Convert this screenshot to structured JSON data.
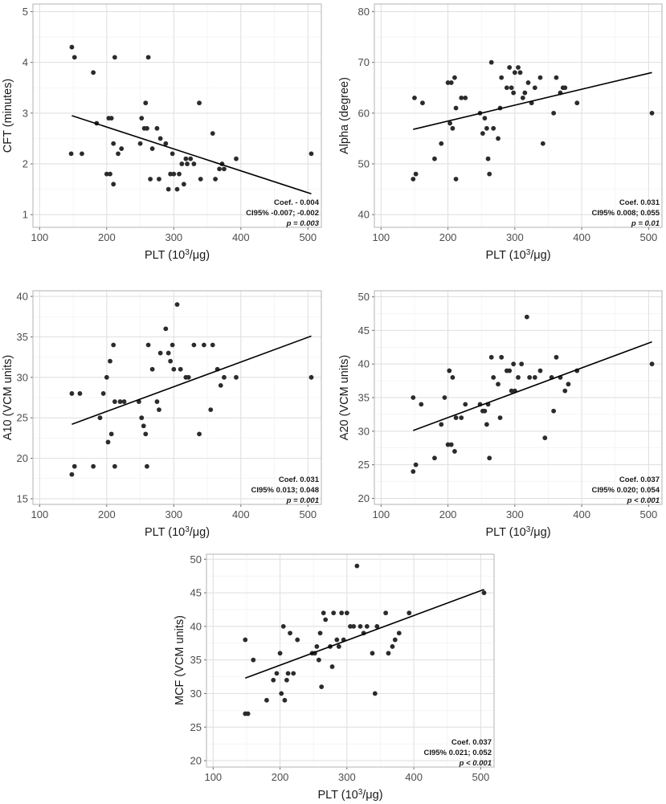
{
  "colors": {
    "panel_border": "#b3b3b3",
    "grid_major": "#dedede",
    "grid_minor": "#efefef",
    "point": "#2b2b2b",
    "line": "#000000"
  },
  "chart_data": [
    {
      "type": "scatter",
      "id": "cft",
      "xlabel_main": "PLT (10",
      "xlabel_sup": "3",
      "xlabel_tail": "/μg)",
      "ylabel": "CFT (minutes)",
      "xlim": [
        90,
        520
      ],
      "ylim": [
        0.75,
        5.15
      ],
      "xticks": [
        100,
        200,
        300,
        400,
        500
      ],
      "yticks": [
        1,
        2,
        3,
        4,
        5
      ],
      "ytick_labels": [
        "1",
        "2",
        "3",
        "4",
        "5"
      ],
      "xtick_labels": [
        "100",
        "200",
        "300",
        "400",
        "500"
      ],
      "fit": {
        "x": [
          148,
          505
        ],
        "y": [
          2.95,
          1.41
        ]
      },
      "stats": {
        "coef": "Coef. - 0.004",
        "ci": "CI95% -0.007; -0.002",
        "p": "p = 0.003"
      },
      "points": [
        [
          148,
          4.3
        ],
        [
          152,
          4.1
        ],
        [
          147,
          2.2
        ],
        [
          163,
          2.2
        ],
        [
          180,
          3.8
        ],
        [
          185,
          2.8
        ],
        [
          200,
          1.8
        ],
        [
          203,
          2.9
        ],
        [
          205,
          1.8
        ],
        [
          207,
          2.9
        ],
        [
          210,
          2.4
        ],
        [
          210,
          1.6
        ],
        [
          212,
          4.1
        ],
        [
          217,
          2.2
        ],
        [
          222,
          2.3
        ],
        [
          250,
          2.4
        ],
        [
          252,
          2.9
        ],
        [
          256,
          2.7
        ],
        [
          258,
          3.2
        ],
        [
          260,
          2.7
        ],
        [
          262,
          4.1
        ],
        [
          265,
          1.7
        ],
        [
          268,
          2.3
        ],
        [
          275,
          2.7
        ],
        [
          278,
          1.7
        ],
        [
          280,
          2.5
        ],
        [
          288,
          2.4
        ],
        [
          292,
          1.5
        ],
        [
          295,
          1.8
        ],
        [
          298,
          2.2
        ],
        [
          300,
          1.8
        ],
        [
          305,
          1.5
        ],
        [
          308,
          1.8
        ],
        [
          312,
          2.0
        ],
        [
          315,
          1.6
        ],
        [
          318,
          2.1
        ],
        [
          320,
          2.0
        ],
        [
          325,
          2.1
        ],
        [
          330,
          2.0
        ],
        [
          338,
          3.2
        ],
        [
          340,
          1.7
        ],
        [
          358,
          2.6
        ],
        [
          362,
          1.7
        ],
        [
          368,
          1.9
        ],
        [
          372,
          2.0
        ],
        [
          375,
          1.9
        ],
        [
          393,
          2.1
        ],
        [
          505,
          2.2
        ]
      ]
    },
    {
      "type": "scatter",
      "id": "alpha",
      "xlabel_main": "PLT (10",
      "xlabel_sup": "3",
      "xlabel_tail": "/μg)",
      "ylabel": "Alpha (degree)",
      "xlim": [
        90,
        520
      ],
      "ylim": [
        37.5,
        81.5
      ],
      "xticks": [
        100,
        200,
        300,
        400,
        500
      ],
      "yticks": [
        40,
        50,
        60,
        70,
        80
      ],
      "ytick_labels": [
        "40",
        "50",
        "60",
        "70",
        "80"
      ],
      "xtick_labels": [
        "100",
        "200",
        "300",
        "400",
        "500"
      ],
      "fit": {
        "x": [
          148,
          505
        ],
        "y": [
          56.8,
          68.0
        ]
      },
      "stats": {
        "coef": "Coef. 0.031",
        "ci": "CI95% 0.008; 0.055",
        "p": "p = 0.01"
      },
      "points": [
        [
          148,
          47
        ],
        [
          150,
          63
        ],
        [
          152,
          48
        ],
        [
          162,
          62
        ],
        [
          180,
          51
        ],
        [
          190,
          54
        ],
        [
          200,
          66
        ],
        [
          203,
          58
        ],
        [
          205,
          66
        ],
        [
          207,
          57
        ],
        [
          210,
          67
        ],
        [
          212,
          61
        ],
        [
          212,
          47
        ],
        [
          220,
          63
        ],
        [
          226,
          63
        ],
        [
          248,
          60
        ],
        [
          252,
          56
        ],
        [
          255,
          59
        ],
        [
          258,
          57
        ],
        [
          260,
          51
        ],
        [
          262,
          48
        ],
        [
          265,
          70
        ],
        [
          268,
          57
        ],
        [
          275,
          55
        ],
        [
          278,
          61
        ],
        [
          280,
          67
        ],
        [
          288,
          65
        ],
        [
          292,
          69
        ],
        [
          295,
          65
        ],
        [
          298,
          64
        ],
        [
          300,
          68
        ],
        [
          305,
          69
        ],
        [
          308,
          68
        ],
        [
          312,
          63
        ],
        [
          315,
          64
        ],
        [
          320,
          66
        ],
        [
          325,
          62
        ],
        [
          330,
          65
        ],
        [
          338,
          67
        ],
        [
          342,
          54
        ],
        [
          358,
          60
        ],
        [
          362,
          67
        ],
        [
          368,
          64
        ],
        [
          372,
          65
        ],
        [
          375,
          65
        ],
        [
          393,
          62
        ],
        [
          505,
          60
        ]
      ]
    },
    {
      "type": "scatter",
      "id": "a10",
      "xlabel_main": "PLT (10",
      "xlabel_sup": "3",
      "xlabel_tail": "/μg)",
      "ylabel": "A10 (VCM units)",
      "xlim": [
        90,
        520
      ],
      "ylim": [
        14.3,
        40.7
      ],
      "xticks": [
        100,
        200,
        300,
        400,
        500
      ],
      "yticks": [
        15,
        20,
        25,
        30,
        35,
        40
      ],
      "ytick_labels": [
        "15",
        "20",
        "25",
        "30",
        "35",
        "40"
      ],
      "xtick_labels": [
        "100",
        "200",
        "300",
        "400",
        "500"
      ],
      "fit": {
        "x": [
          148,
          505
        ],
        "y": [
          24.2,
          35.1
        ]
      },
      "stats": {
        "coef": "Coef. 0.031",
        "ci": "CI95% 0.013; 0.048",
        "p": "p = 0.001"
      },
      "points": [
        [
          148,
          28
        ],
        [
          148,
          18
        ],
        [
          152,
          19
        ],
        [
          160,
          28
        ],
        [
          180,
          19
        ],
        [
          190,
          25
        ],
        [
          195,
          28
        ],
        [
          200,
          30
        ],
        [
          202,
          22
        ],
        [
          205,
          32
        ],
        [
          207,
          23
        ],
        [
          210,
          34
        ],
        [
          212,
          27
        ],
        [
          212,
          19
        ],
        [
          220,
          27
        ],
        [
          226,
          27
        ],
        [
          248,
          27
        ],
        [
          252,
          25
        ],
        [
          255,
          24
        ],
        [
          258,
          23
        ],
        [
          260,
          19
        ],
        [
          262,
          34
        ],
        [
          268,
          31
        ],
        [
          275,
          27
        ],
        [
          278,
          26
        ],
        [
          280,
          33
        ],
        [
          288,
          36
        ],
        [
          292,
          33
        ],
        [
          295,
          32
        ],
        [
          298,
          34
        ],
        [
          300,
          31
        ],
        [
          305,
          39
        ],
        [
          310,
          31
        ],
        [
          318,
          30
        ],
        [
          322,
          30
        ],
        [
          330,
          34
        ],
        [
          338,
          23
        ],
        [
          345,
          34
        ],
        [
          355,
          26
        ],
        [
          358,
          34
        ],
        [
          365,
          31
        ],
        [
          370,
          29
        ],
        [
          375,
          30
        ],
        [
          393,
          30
        ],
        [
          505,
          30
        ]
      ]
    },
    {
      "type": "scatter",
      "id": "a20",
      "xlabel_main": "PLT (10",
      "xlabel_sup": "3",
      "xlabel_tail": "/μg)",
      "ylabel": "A20 (VCM units)",
      "xlim": [
        90,
        520
      ],
      "ylim": [
        19.1,
        50.9
      ],
      "xticks": [
        100,
        200,
        300,
        400,
        500
      ],
      "yticks": [
        20,
        25,
        30,
        35,
        40,
        45,
        50
      ],
      "ytick_labels": [
        "20",
        "25",
        "30",
        "35",
        "40",
        "45",
        "50"
      ],
      "xtick_labels": [
        "100",
        "200",
        "300",
        "400",
        "500"
      ],
      "fit": {
        "x": [
          148,
          505
        ],
        "y": [
          30.1,
          43.3
        ]
      },
      "stats": {
        "coef": "Coef. 0.037",
        "ci": "CI95% 0.020; 0.054",
        "p": "p < 0.001"
      },
      "points": [
        [
          148,
          35
        ],
        [
          148,
          24
        ],
        [
          152,
          25
        ],
        [
          160,
          34
        ],
        [
          180,
          26
        ],
        [
          190,
          31
        ],
        [
          195,
          35
        ],
        [
          200,
          28
        ],
        [
          202,
          39
        ],
        [
          205,
          28
        ],
        [
          207,
          38
        ],
        [
          210,
          27
        ],
        [
          212,
          32
        ],
        [
          220,
          32
        ],
        [
          226,
          34
        ],
        [
          248,
          34
        ],
        [
          252,
          33
        ],
        [
          255,
          33
        ],
        [
          258,
          31
        ],
        [
          260,
          34
        ],
        [
          262,
          26
        ],
        [
          265,
          41
        ],
        [
          268,
          38
        ],
        [
          275,
          37
        ],
        [
          278,
          32
        ],
        [
          280,
          41
        ],
        [
          288,
          39
        ],
        [
          292,
          39
        ],
        [
          295,
          36
        ],
        [
          298,
          40
        ],
        [
          300,
          36
        ],
        [
          305,
          38
        ],
        [
          310,
          40
        ],
        [
          318,
          47
        ],
        [
          322,
          38
        ],
        [
          330,
          38
        ],
        [
          338,
          39
        ],
        [
          345,
          29
        ],
        [
          355,
          38
        ],
        [
          358,
          33
        ],
        [
          362,
          41
        ],
        [
          368,
          38
        ],
        [
          375,
          36
        ],
        [
          380,
          37
        ],
        [
          393,
          39
        ],
        [
          505,
          40
        ]
      ]
    },
    {
      "type": "scatter",
      "id": "mcf",
      "xlabel_main": "PLT (10",
      "xlabel_sup": "3",
      "xlabel_tail": "/μg)",
      "ylabel": "MCF (VCM units)",
      "xlim": [
        90,
        520
      ],
      "ylim": [
        19.05,
        50.75
      ],
      "xticks": [
        100,
        200,
        300,
        400,
        500
      ],
      "yticks": [
        20,
        25,
        30,
        35,
        40,
        45,
        50
      ],
      "ytick_labels": [
        "20",
        "25",
        "30",
        "35",
        "40",
        "45",
        "50"
      ],
      "xtick_labels": [
        "100",
        "200",
        "300",
        "400",
        "500"
      ],
      "fit": {
        "x": [
          148,
          505
        ],
        "y": [
          32.3,
          45.5
        ]
      },
      "stats": {
        "coef": "Coef. 0.037",
        "ci": "CI95% 0.021; 0.052",
        "p": "p < 0.001"
      },
      "points": [
        [
          148,
          38
        ],
        [
          148,
          27
        ],
        [
          152,
          27
        ],
        [
          160,
          35
        ],
        [
          180,
          29
        ],
        [
          190,
          32
        ],
        [
          195,
          33
        ],
        [
          200,
          36
        ],
        [
          202,
          30
        ],
        [
          205,
          40
        ],
        [
          207,
          29
        ],
        [
          210,
          32
        ],
        [
          212,
          33
        ],
        [
          215,
          39
        ],
        [
          220,
          33
        ],
        [
          226,
          38
        ],
        [
          248,
          36
        ],
        [
          252,
          36
        ],
        [
          255,
          37
        ],
        [
          258,
          35
        ],
        [
          260,
          39
        ],
        [
          262,
          31
        ],
        [
          265,
          42
        ],
        [
          268,
          41
        ],
        [
          275,
          37
        ],
        [
          278,
          34
        ],
        [
          280,
          42
        ],
        [
          285,
          38
        ],
        [
          288,
          37
        ],
        [
          292,
          42
        ],
        [
          295,
          38
        ],
        [
          300,
          42
        ],
        [
          305,
          40
        ],
        [
          310,
          40
        ],
        [
          315,
          49
        ],
        [
          320,
          40
        ],
        [
          325,
          39
        ],
        [
          330,
          40
        ],
        [
          338,
          36
        ],
        [
          342,
          30
        ],
        [
          345,
          40
        ],
        [
          358,
          42
        ],
        [
          362,
          36
        ],
        [
          368,
          37
        ],
        [
          372,
          38
        ],
        [
          378,
          39
        ],
        [
          393,
          42
        ],
        [
          505,
          45
        ]
      ]
    }
  ]
}
